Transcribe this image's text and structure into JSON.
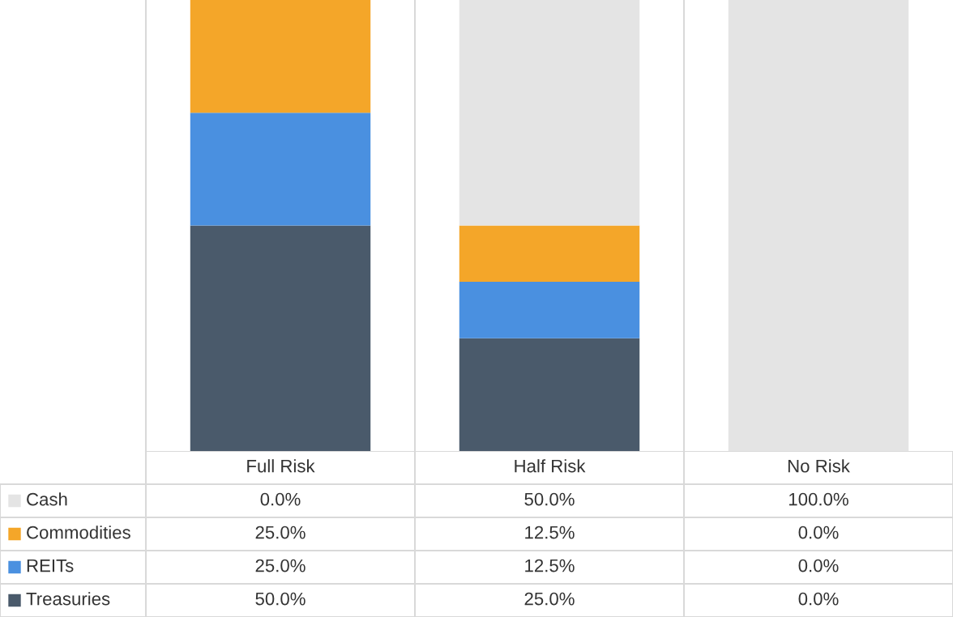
{
  "chart_data": {
    "type": "bar",
    "stacked": true,
    "categories": [
      "Full Risk",
      "Half Risk",
      "No Risk"
    ],
    "series": [
      {
        "name": "Treasuries",
        "color": "#4a5a6b",
        "values": [
          50,
          25,
          0
        ],
        "value_labels": [
          "50.0%",
          "25.0%",
          "0.0%"
        ]
      },
      {
        "name": "REITs",
        "color": "#4a90e0",
        "values": [
          25,
          12.5,
          0
        ],
        "value_labels": [
          "25.0%",
          "12.5%",
          "0.0%"
        ]
      },
      {
        "name": "Commodities",
        "color": "#f4a629",
        "values": [
          25,
          12.5,
          0
        ],
        "value_labels": [
          "25.0%",
          "12.5%",
          "0.0%"
        ]
      },
      {
        "name": "Cash",
        "color": "#e4e4e4",
        "values": [
          0,
          50,
          100
        ],
        "value_labels": [
          "0.0%",
          "50.0%",
          "100.0%"
        ]
      }
    ],
    "ylim": [
      0,
      100
    ],
    "legend": "bottom left"
  }
}
